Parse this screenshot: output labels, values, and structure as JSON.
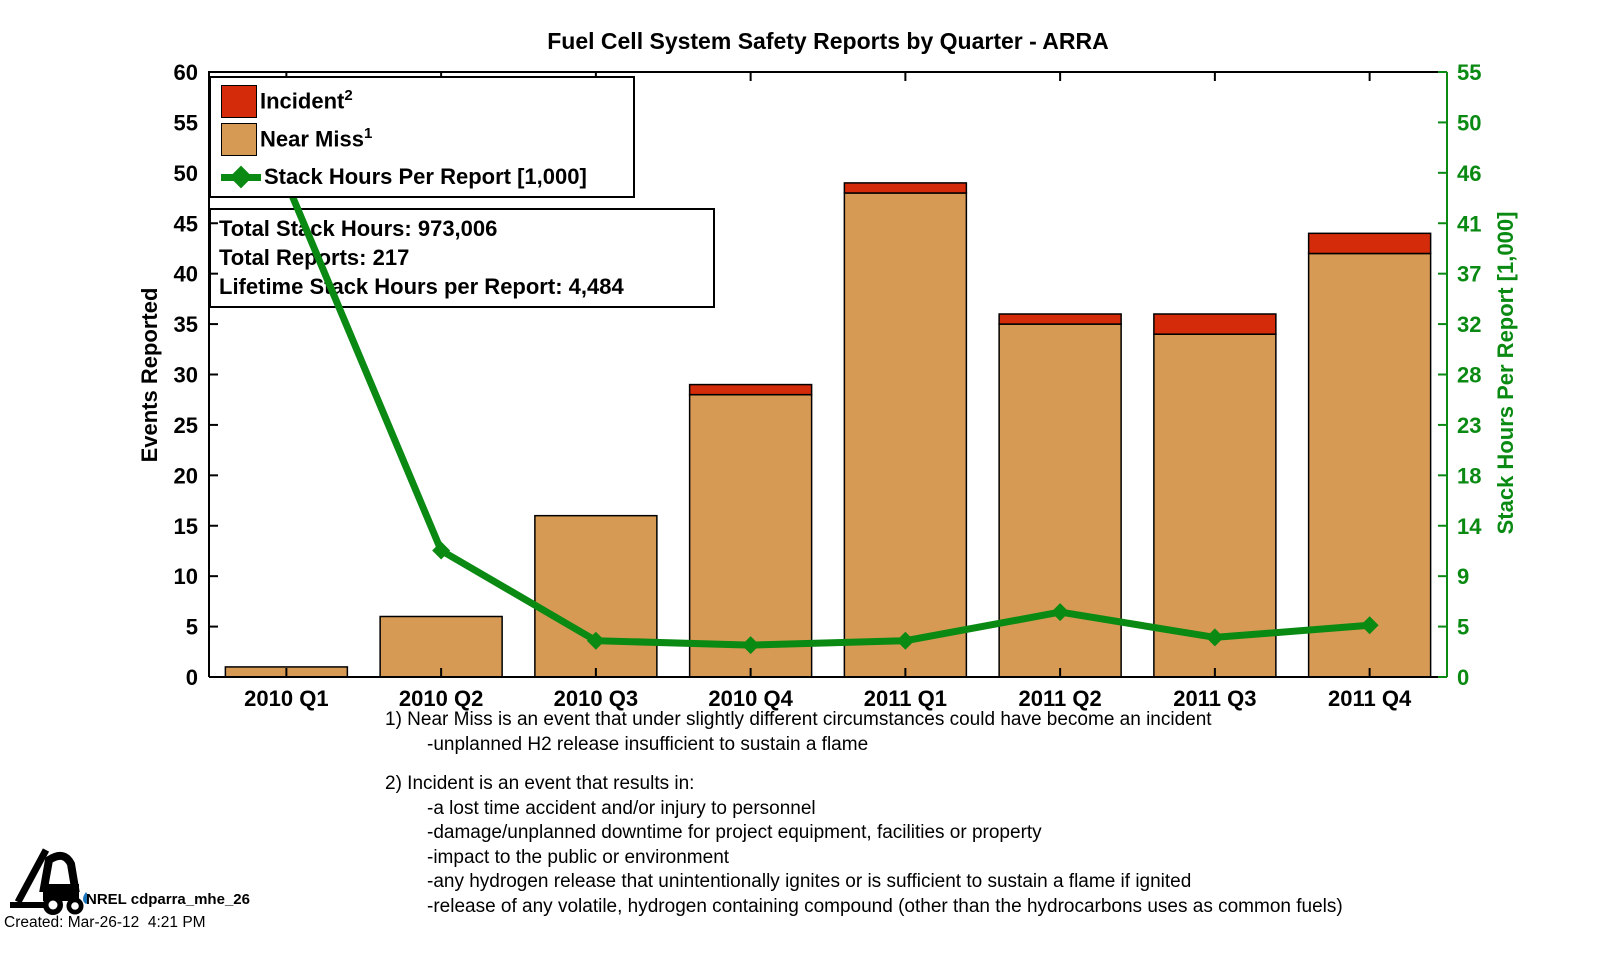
{
  "title": "Fuel Cell System Safety Reports by Quarter - ARRA",
  "chart_data": {
    "type": "bar",
    "subtype": "stacked bars with overlaid line on secondary axis",
    "categories": [
      "2010 Q1",
      "2010 Q2",
      "2010 Q3",
      "2010 Q4",
      "2011 Q1",
      "2011 Q2",
      "2011 Q3",
      "2011 Q4"
    ],
    "series": [
      {
        "name": "Near Miss",
        "type": "bar",
        "color": "#D69A55",
        "values": [
          1,
          6,
          16,
          28,
          48,
          35,
          34,
          42
        ]
      },
      {
        "name": "Incident",
        "type": "bar",
        "color": "#D42B0B",
        "values": [
          0,
          0,
          0,
          1,
          1,
          1,
          2,
          2
        ]
      },
      {
        "name": "Stack Hours Per Report [1,000]",
        "type": "line",
        "axis": "right",
        "color": "#0A8A12",
        "values": [
          45,
          11.5,
          3.3,
          2.9,
          3.3,
          5.9,
          3.6,
          4.7
        ],
        "note": "first point hidden behind legend"
      }
    ],
    "left_axis": {
      "label": "Events Reported",
      "min": 0,
      "max": 60,
      "ticks": [
        0,
        5,
        10,
        15,
        20,
        25,
        30,
        35,
        40,
        45,
        50,
        55,
        60
      ],
      "color": "#000000"
    },
    "right_axis": {
      "label": "Stack Hours Per Report [1,000]",
      "min": 0,
      "max": 55,
      "tick_labels": [
        "0",
        "5",
        "9",
        "14",
        "18",
        "23",
        "28",
        "32",
        "37",
        "41",
        "46",
        "50",
        "55"
      ],
      "color": "#0A8A12"
    },
    "legend": [
      {
        "label": "Incident",
        "sup": "2"
      },
      {
        "label": "Near Miss",
        "sup": "1"
      },
      {
        "label": "Stack Hours Per Report [1,000]",
        "sup": ""
      }
    ],
    "grid": "off",
    "legend_position": "upper-left inside plot"
  },
  "stats_box": {
    "lines": [
      "Total Stack Hours: 973,006",
      "Total Reports: 217",
      "Lifetime Stack Hours per Report: 4,484"
    ]
  },
  "footnotes": {
    "note1": [
      "1) Near Miss is an event that under slightly different circumstances could have become an incident",
      "-unplanned H2 release insufficient to sustain a flame"
    ],
    "note2": [
      "2) Incident is an event that results in:",
      "-a lost time accident and/or injury to personnel",
      "-damage/unplanned downtime for project equipment, facilities or property",
      "-impact to the public or environment",
      "-any hydrogen release that unintentionally ignites or is sufficient to sustain a flame if ignited",
      "-release of any volatile, hydrogen containing compound (other than the hydrocarbons uses as common fuels)"
    ]
  },
  "footer": {
    "logo_text": "NREL cdparra_mhe_26",
    "created": "Created: Mar-26-12  4:21 PM",
    "droplet_color": "#1B75BB"
  }
}
